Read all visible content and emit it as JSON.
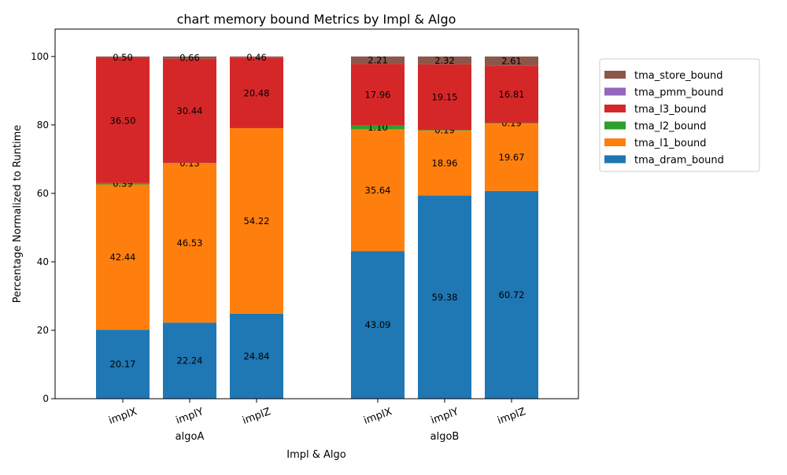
{
  "chart_data": {
    "type": "bar",
    "stacked": true,
    "title": "chart memory bound Metrics by Impl & Algo",
    "xlabel": "Impl & Algo",
    "ylabel": "Percentage Normalized to Runtime",
    "ylim": [
      0,
      108
    ],
    "yticks": [
      0,
      20,
      40,
      60,
      80,
      100
    ],
    "groups": [
      {
        "name": "algoA",
        "categories": [
          "implX",
          "implY",
          "implZ"
        ]
      },
      {
        "name": "algoB",
        "categories": [
          "implX",
          "implY",
          "implZ"
        ]
      }
    ],
    "series": [
      {
        "name": "tma_dram_bound",
        "color": "#1f77b4",
        "values": [
          20.17,
          22.24,
          24.84,
          43.09,
          59.38,
          60.72
        ],
        "labels": [
          "20.17",
          "22.24",
          "24.84",
          "43.09",
          "59.38",
          "60.72"
        ]
      },
      {
        "name": "tma_l1_bound",
        "color": "#ff7f0e",
        "values": [
          42.44,
          46.53,
          54.22,
          35.64,
          18.96,
          19.67
        ],
        "labels": [
          "42.44",
          "46.53",
          "54.22",
          "35.64",
          "18.96",
          "19.67"
        ]
      },
      {
        "name": "tma_l2_bound",
        "color": "#2ca02c",
        "values": [
          0.39,
          0.13,
          0.0,
          1.1,
          0.19,
          0.19
        ],
        "labels": [
          "0.39",
          "0.13",
          "",
          "1.10",
          "0.19",
          "0.19"
        ]
      },
      {
        "name": "tma_l3_bound",
        "color": "#d62728",
        "values": [
          36.5,
          30.44,
          20.48,
          17.96,
          19.15,
          16.81
        ],
        "labels": [
          "36.50",
          "30.44",
          "20.48",
          "17.96",
          "19.15",
          "16.81"
        ]
      },
      {
        "name": "tma_pmm_bound",
        "color": "#9467bd",
        "values": [
          0,
          0,
          0,
          0,
          0,
          0
        ],
        "labels": [
          "",
          "",
          "",
          "",
          "",
          ""
        ]
      },
      {
        "name": "tma_store_bound",
        "color": "#8c564b",
        "values": [
          0.5,
          0.66,
          0.46,
          2.21,
          2.32,
          2.61
        ],
        "labels": [
          "0.50",
          "0.66",
          "0.46",
          "2.21",
          "2.32",
          "2.61"
        ]
      }
    ],
    "legend": {
      "placement": "right",
      "order": [
        "tma_store_bound",
        "tma_pmm_bound",
        "tma_l3_bound",
        "tma_l2_bound",
        "tma_l1_bound",
        "tma_dram_bound"
      ]
    },
    "grid": false
  }
}
